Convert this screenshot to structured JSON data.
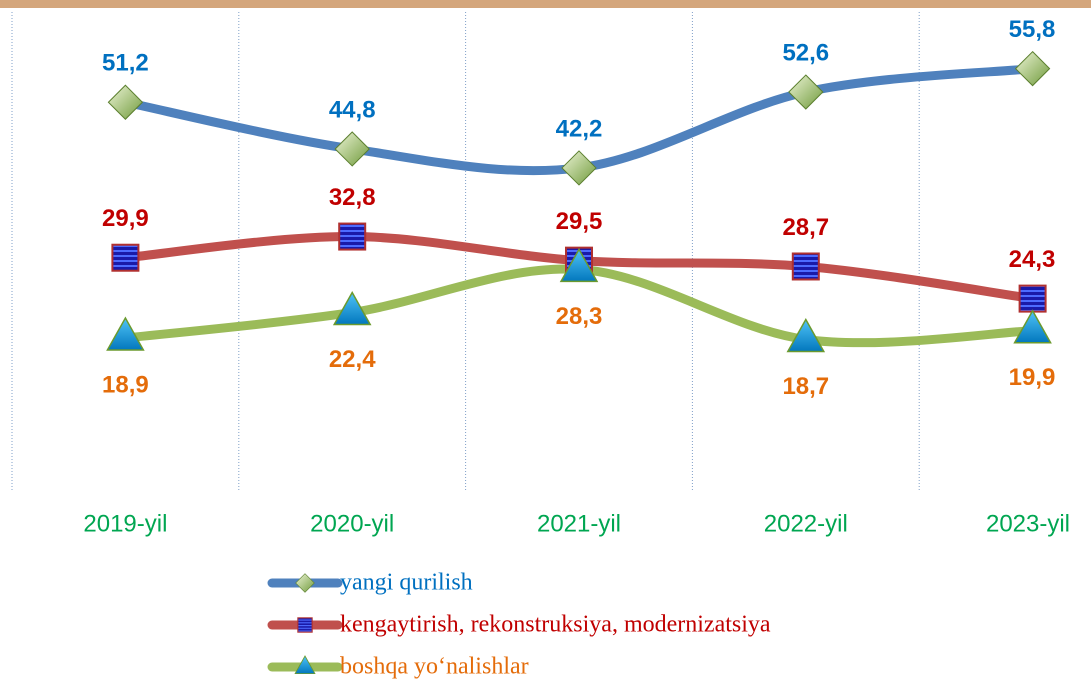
{
  "chart_data": {
    "type": "line",
    "categories": [
      "2019-yil",
      "2020-yil",
      "2021-yil",
      "2022-yil",
      "2023-yil"
    ],
    "series": [
      {
        "name": "yangi qurilish",
        "color": "#4f81bd",
        "label_color": "#0070c0",
        "label_position": "above",
        "values": [
          51.2,
          44.8,
          42.2,
          52.6,
          55.8
        ],
        "value_labels": [
          "51,2",
          "44,8",
          "42,2",
          "52,6",
          "55,8"
        ]
      },
      {
        "name": "kengaytirish, rekonstruksiya, modernizatsiya",
        "color": "#c0504d",
        "label_color": "#c00000",
        "label_position": "above",
        "values": [
          29.9,
          32.8,
          29.5,
          28.7,
          24.3
        ],
        "value_labels": [
          "29,9",
          "32,8",
          "29,5",
          "28,7",
          "24,3"
        ]
      },
      {
        "name": "boshqa yo‘nalishlar",
        "color": "#9bbb59",
        "label_color": "#e46c0a",
        "label_position": "below",
        "values": [
          18.9,
          22.4,
          28.3,
          18.7,
          19.9
        ],
        "value_labels": [
          "18,9",
          "22,4",
          "28,3",
          "18,7",
          "19,9"
        ]
      }
    ],
    "ylim": [
      0,
      60
    ],
    "smooth": true,
    "legend": "bottom"
  }
}
